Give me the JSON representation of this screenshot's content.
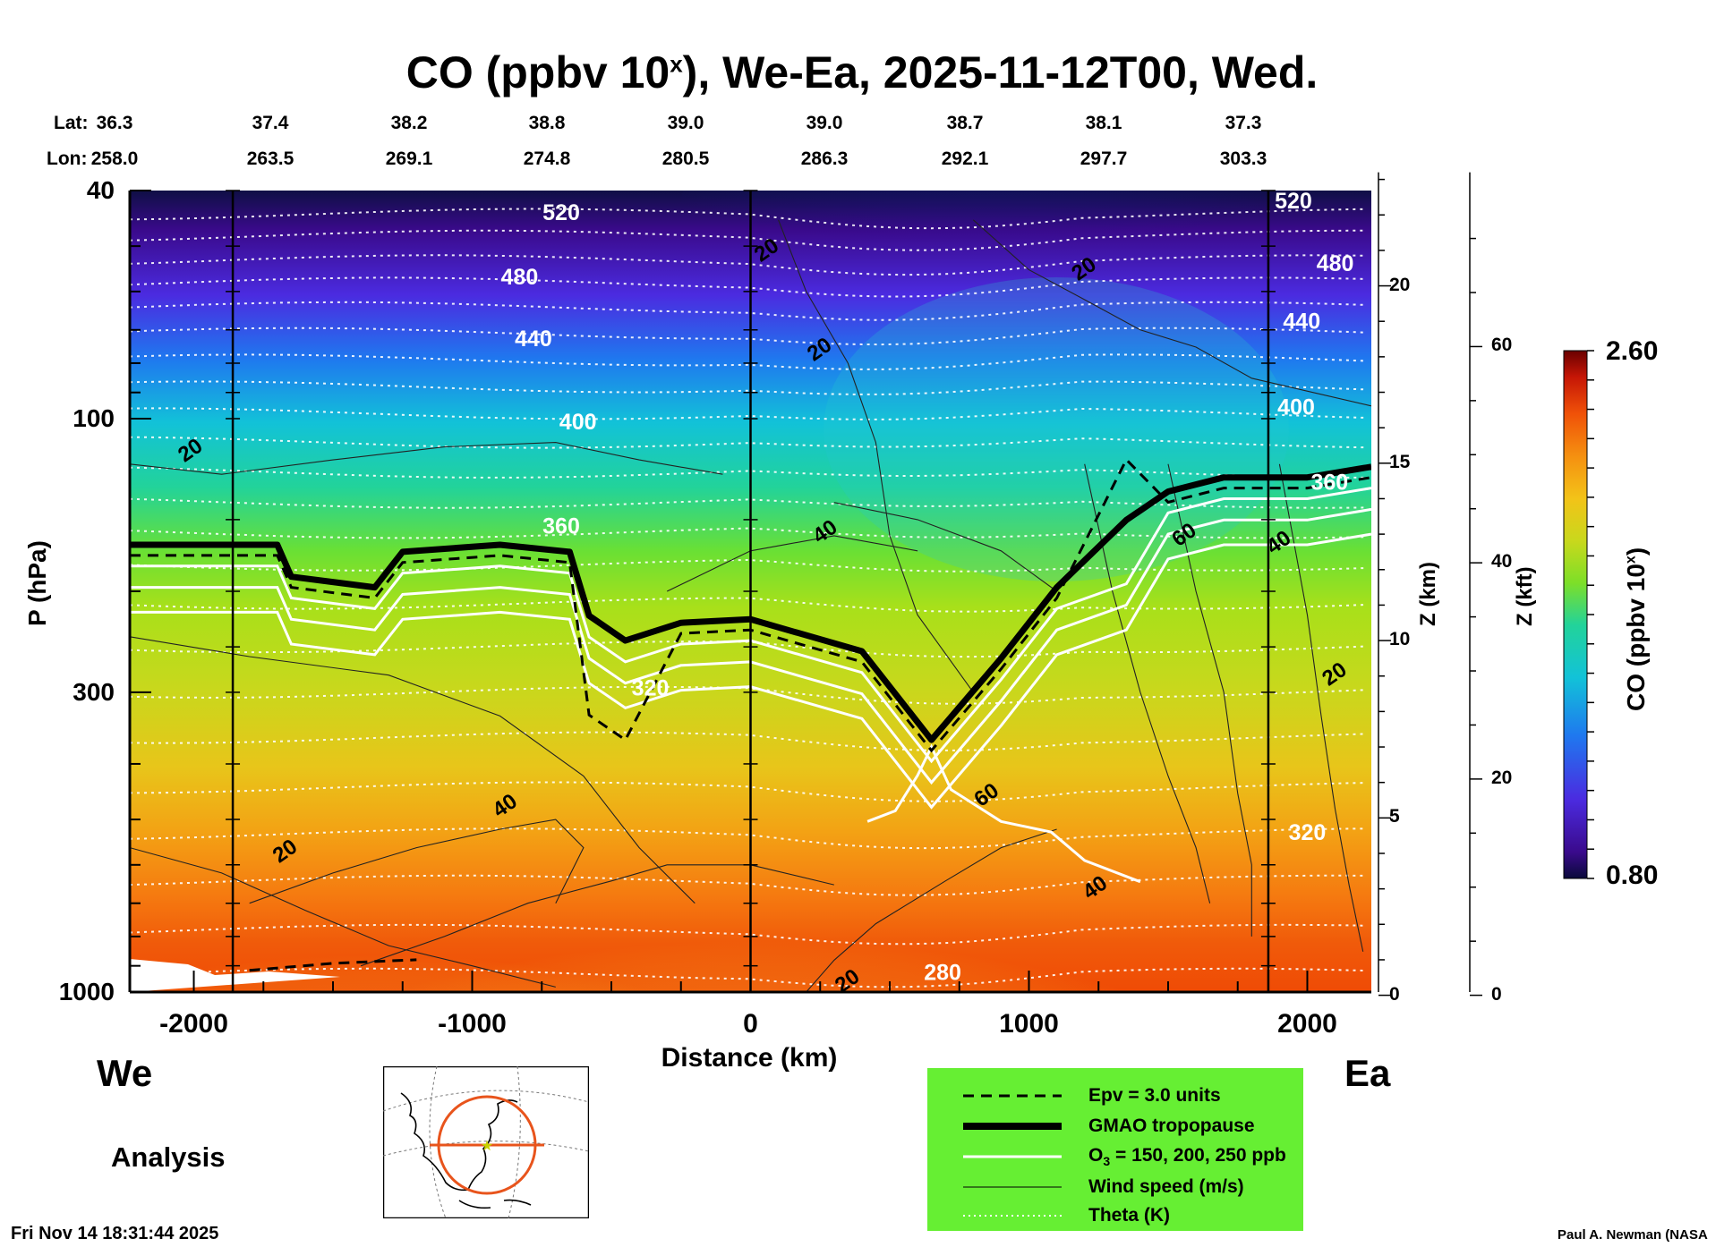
{
  "title": {
    "text": "CO (ppbv 10",
    "sup": "x",
    "rest": "), We-Ea, 2025-11-12T00, Wed."
  },
  "header": {
    "lat_label": "Lat:",
    "lon_label": "Lon:",
    "lat_values": [
      "36.3",
      "37.4",
      "38.2",
      "38.8",
      "39.0",
      "39.0",
      "38.7",
      "38.1",
      "37.3"
    ],
    "lon_values": [
      "258.0",
      "263.5",
      "269.1",
      "274.8",
      "280.5",
      "286.3",
      "292.1",
      "297.7",
      "303.3"
    ]
  },
  "colorbar": {
    "max_label": "2.60",
    "min_label": "0.80",
    "title": "CO (ppbv 10",
    "title_sup": "x",
    "title_end": ")"
  },
  "footer": {
    "west_label": "We",
    "east_label": "Ea",
    "analysis_label": "Analysis",
    "timestamp": "Fri Nov 14 18:31:44 2025",
    "credit": "Paul A. Newman (NASA"
  },
  "legend": [
    {
      "style": "dashed",
      "text": "Epv = 3.0 units"
    },
    {
      "style": "thick",
      "text": "GMAO tropopause"
    },
    {
      "style": "white",
      "text": "O3 = 150, 200, 250 ppb",
      "prefix": "O",
      "sub": "3",
      "suffix": " = 150, 200, 250 ppb"
    },
    {
      "style": "thin",
      "text": "Wind speed (m/s)"
    },
    {
      "style": "dotted",
      "text": "Theta (K)"
    }
  ],
  "chart_data": {
    "type": "heatmap",
    "title": "CO (ppbv 10^x), We-Ea, 2025-11-12T00, Wed.",
    "xlabel": "Distance (km)",
    "ylabel": "P (hPa)",
    "x_ticks": [
      -2000,
      -1000,
      0,
      1000,
      2000
    ],
    "xlim": [
      -2230,
      2230
    ],
    "y_ticks": [
      40,
      100,
      300,
      1000
    ],
    "ylim": [
      1000,
      40
    ],
    "y_scale": "log",
    "z_km_label": "Z (km)",
    "z_km_ticks": [
      0,
      5,
      10,
      15,
      20
    ],
    "z_kft_label": "Z (kft)",
    "z_kft_ticks": [
      0,
      20,
      40,
      60
    ],
    "colorbar_range": [
      0.8,
      2.6
    ],
    "theta_labels": [
      {
        "value": "520",
        "x": -680,
        "p": 44
      },
      {
        "value": "480",
        "x": -830,
        "p": 57
      },
      {
        "value": "440",
        "x": -780,
        "p": 73
      },
      {
        "value": "400",
        "x": -620,
        "p": 102
      },
      {
        "value": "360",
        "x": -680,
        "p": 155
      },
      {
        "value": "320",
        "x": -360,
        "p": 297
      },
      {
        "value": "280",
        "x": 690,
        "p": 930
      },
      {
        "value": "520",
        "x": 1950,
        "p": 42
      },
      {
        "value": "480",
        "x": 2100,
        "p": 54
      },
      {
        "value": "440",
        "x": 1980,
        "p": 68
      },
      {
        "value": "400",
        "x": 1960,
        "p": 96
      },
      {
        "value": "360",
        "x": 2080,
        "p": 130
      },
      {
        "value": "320",
        "x": 2000,
        "p": 530
      }
    ],
    "wind_labels": [
      {
        "value": "20",
        "x": -2010,
        "p": 114
      },
      {
        "value": "40",
        "x": -880,
        "p": 475
      },
      {
        "value": "20",
        "x": -1670,
        "p": 570
      },
      {
        "value": "20",
        "x": 60,
        "p": 51
      },
      {
        "value": "20",
        "x": 250,
        "p": 76
      },
      {
        "value": "20",
        "x": 1200,
        "p": 55
      },
      {
        "value": "40",
        "x": 270,
        "p": 158
      },
      {
        "value": "60",
        "x": 1560,
        "p": 160
      },
      {
        "value": "40",
        "x": 1900,
        "p": 165
      },
      {
        "value": "20",
        "x": 2100,
        "p": 280
      },
      {
        "value": "60",
        "x": 850,
        "p": 455
      },
      {
        "value": "40",
        "x": 1240,
        "p": 660
      },
      {
        "value": "20",
        "x": 350,
        "p": 960
      }
    ],
    "tropopause_km": [
      [
        -2230,
        12.7
      ],
      [
        -1700,
        12.7
      ],
      [
        -1650,
        11.8
      ],
      [
        -1350,
        11.5
      ],
      [
        -1250,
        12.5
      ],
      [
        -900,
        12.7
      ],
      [
        -650,
        12.5
      ],
      [
        -580,
        10.7
      ],
      [
        -450,
        10
      ],
      [
        -250,
        10.5
      ],
      [
        0,
        10.6
      ],
      [
        400,
        9.7
      ],
      [
        650,
        7.2
      ],
      [
        900,
        9.5
      ],
      [
        1100,
        11.5
      ],
      [
        1350,
        13.4
      ],
      [
        1500,
        14.2
      ],
      [
        1700,
        14.6
      ],
      [
        2000,
        14.6
      ],
      [
        2230,
        14.9
      ]
    ],
    "vertical_lines_km": [
      -1860,
      0,
      1860
    ]
  }
}
